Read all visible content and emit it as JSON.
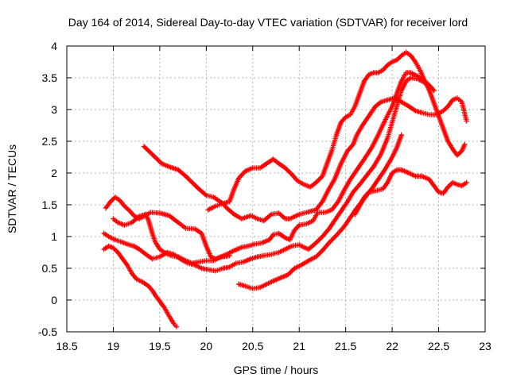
{
  "chart_data": {
    "type": "scatter",
    "title": "Day 164 of 2014, Sidereal Day-to-day VTEC variation (SDTVAR) for receiver lord",
    "xlabel": "GPS time / hours",
    "ylabel": "SDTVAR / TECUs",
    "xlim": [
      18.5,
      23
    ],
    "ylim": [
      -0.5,
      4
    ],
    "xticks": [
      "18.5",
      "19",
      "19.5",
      "20",
      "20.5",
      "21",
      "21.5",
      "22",
      "22.5",
      "23"
    ],
    "yticks": [
      "-0.5",
      "0",
      "0.5",
      "1",
      "1.5",
      "2",
      "2.5",
      "3",
      "3.5",
      "4"
    ],
    "grid": true,
    "marker": "plus",
    "color": "#ff0000",
    "series": [
      {
        "points": [
          [
            18.92,
            1.45
          ],
          [
            18.97,
            1.55
          ],
          [
            19.02,
            1.62
          ],
          [
            19.07,
            1.57
          ],
          [
            19.12,
            1.48
          ],
          [
            19.18,
            1.4
          ],
          [
            19.22,
            1.33
          ],
          [
            19.28,
            1.28
          ],
          [
            19.33,
            1.32
          ],
          [
            19.4,
            1.38
          ],
          [
            19.5,
            1.37
          ],
          [
            19.6,
            1.33
          ],
          [
            19.7,
            1.22
          ],
          [
            19.78,
            1.13
          ],
          [
            19.88,
            1.12
          ],
          [
            19.95,
            1.05
          ],
          [
            20.0,
            0.85
          ],
          [
            20.05,
            0.68
          ],
          [
            20.1,
            0.65
          ],
          [
            20.18,
            0.68
          ],
          [
            20.25,
            0.7
          ]
        ]
      },
      {
        "points": [
          [
            19.33,
            2.42
          ],
          [
            19.38,
            2.35
          ],
          [
            19.45,
            2.25
          ],
          [
            19.52,
            2.15
          ],
          [
            19.6,
            2.1
          ],
          [
            19.7,
            2.05
          ],
          [
            19.78,
            1.95
          ],
          [
            19.85,
            1.85
          ],
          [
            19.92,
            1.75
          ],
          [
            20.0,
            1.65
          ],
          [
            20.08,
            1.62
          ],
          [
            20.12,
            1.58
          ],
          [
            20.18,
            1.52
          ],
          [
            20.22,
            1.45
          ],
          [
            20.3,
            1.35
          ],
          [
            20.38,
            1.28
          ],
          [
            20.48,
            1.33
          ],
          [
            20.55,
            1.28
          ],
          [
            20.62,
            1.25
          ],
          [
            20.7,
            1.35
          ],
          [
            20.78,
            1.37
          ],
          [
            20.85,
            1.28
          ],
          [
            20.9,
            1.28
          ],
          [
            21.0,
            1.35
          ],
          [
            21.08,
            1.38
          ],
          [
            21.18,
            1.42
          ],
          [
            21.25,
            1.55
          ],
          [
            21.32,
            1.75
          ],
          [
            21.38,
            1.9
          ],
          [
            21.45,
            2.15
          ],
          [
            21.52,
            2.35
          ],
          [
            21.58,
            2.45
          ],
          [
            21.62,
            2.6
          ],
          [
            21.68,
            2.75
          ],
          [
            21.75,
            2.9
          ],
          [
            21.82,
            3.05
          ],
          [
            21.88,
            3.12
          ],
          [
            21.95,
            3.15
          ],
          [
            22.02,
            3.18
          ],
          [
            22.1,
            3.12
          ],
          [
            22.18,
            3.05
          ],
          [
            22.25,
            2.98
          ],
          [
            22.32,
            2.95
          ],
          [
            22.4,
            2.92
          ],
          [
            22.48,
            2.92
          ],
          [
            22.55,
            2.98
          ],
          [
            22.6,
            3.05
          ],
          [
            22.65,
            3.15
          ],
          [
            22.7,
            3.18
          ],
          [
            22.75,
            3.12
          ],
          [
            22.8,
            2.82
          ]
        ]
      },
      {
        "points": [
          [
            19.0,
            1.28
          ],
          [
            19.05,
            1.22
          ],
          [
            19.12,
            1.18
          ],
          [
            19.2,
            1.22
          ],
          [
            19.28,
            1.32
          ],
          [
            19.35,
            1.35
          ],
          [
            19.38,
            1.25
          ],
          [
            19.42,
            1.05
          ],
          [
            19.45,
            0.92
          ],
          [
            19.5,
            0.8
          ],
          [
            19.55,
            0.75
          ],
          [
            19.62,
            0.7
          ],
          [
            19.7,
            0.68
          ],
          [
            19.78,
            0.62
          ],
          [
            19.85,
            0.58
          ],
          [
            19.92,
            0.6
          ],
          [
            20.0,
            0.62
          ],
          [
            20.08,
            0.62
          ],
          [
            20.15,
            0.68
          ],
          [
            20.22,
            0.72
          ],
          [
            20.3,
            0.78
          ],
          [
            20.38,
            0.83
          ],
          [
            20.45,
            0.85
          ],
          [
            20.52,
            0.88
          ],
          [
            20.6,
            0.9
          ],
          [
            20.68,
            0.95
          ],
          [
            20.72,
            1.03
          ],
          [
            20.78,
            1.05
          ],
          [
            20.85,
            0.98
          ],
          [
            20.9,
            0.95
          ],
          [
            20.95,
            1.1
          ],
          [
            21.0,
            1.18
          ],
          [
            21.08,
            1.2
          ],
          [
            21.15,
            1.25
          ],
          [
            21.2,
            1.38
          ],
          [
            21.28,
            1.38
          ],
          [
            21.35,
            1.42
          ],
          [
            21.42,
            1.55
          ],
          [
            21.48,
            1.72
          ],
          [
            21.55,
            1.9
          ],
          [
            21.62,
            2.05
          ],
          [
            21.7,
            2.22
          ],
          [
            21.78,
            2.4
          ],
          [
            21.85,
            2.6
          ],
          [
            21.92,
            2.82
          ],
          [
            22.0,
            3.05
          ],
          [
            22.05,
            3.25
          ],
          [
            22.1,
            3.45
          ],
          [
            22.15,
            3.58
          ],
          [
            22.2,
            3.58
          ],
          [
            22.28,
            3.52
          ],
          [
            22.35,
            3.45
          ],
          [
            22.4,
            3.38
          ],
          [
            22.45,
            3.3
          ]
        ]
      },
      {
        "points": [
          [
            18.9,
            0.8
          ],
          [
            18.95,
            0.85
          ],
          [
            19.0,
            0.82
          ],
          [
            19.05,
            0.75
          ],
          [
            19.1,
            0.65
          ],
          [
            19.15,
            0.55
          ],
          [
            19.2,
            0.42
          ],
          [
            19.25,
            0.33
          ],
          [
            19.32,
            0.28
          ],
          [
            19.38,
            0.22
          ],
          [
            19.42,
            0.15
          ],
          [
            19.45,
            0.08
          ],
          [
            19.5,
            -0.02
          ],
          [
            19.55,
            -0.12
          ],
          [
            19.6,
            -0.25
          ],
          [
            19.65,
            -0.37
          ],
          [
            19.68,
            -0.42
          ]
        ]
      },
      {
        "points": [
          [
            18.9,
            1.05
          ],
          [
            18.95,
            1.0
          ],
          [
            19.02,
            0.95
          ],
          [
            19.08,
            0.92
          ],
          [
            19.15,
            0.88
          ],
          [
            19.22,
            0.85
          ],
          [
            19.28,
            0.8
          ],
          [
            19.35,
            0.72
          ],
          [
            19.42,
            0.65
          ],
          [
            19.5,
            0.68
          ],
          [
            19.58,
            0.75
          ],
          [
            19.65,
            0.72
          ],
          [
            19.72,
            0.65
          ],
          [
            19.8,
            0.58
          ],
          [
            19.88,
            0.55
          ],
          [
            19.95,
            0.5
          ],
          [
            20.02,
            0.48
          ],
          [
            20.1,
            0.46
          ],
          [
            20.18,
            0.5
          ],
          [
            20.25,
            0.52
          ],
          [
            20.32,
            0.58
          ],
          [
            20.4,
            0.6
          ],
          [
            20.48,
            0.65
          ],
          [
            20.55,
            0.68
          ],
          [
            20.62,
            0.7
          ],
          [
            20.7,
            0.72
          ],
          [
            20.78,
            0.75
          ],
          [
            20.85,
            0.8
          ],
          [
            20.92,
            0.85
          ],
          [
            21.0,
            0.87
          ],
          [
            21.05,
            0.83
          ],
          [
            21.1,
            0.8
          ],
          [
            21.18,
            0.9
          ],
          [
            21.25,
            1.0
          ],
          [
            21.32,
            1.12
          ],
          [
            21.38,
            1.25
          ],
          [
            21.45,
            1.4
          ],
          [
            21.52,
            1.55
          ],
          [
            21.58,
            1.7
          ],
          [
            21.65,
            1.82
          ],
          [
            21.72,
            1.95
          ],
          [
            21.8,
            2.1
          ],
          [
            21.88,
            2.3
          ],
          [
            21.95,
            2.55
          ],
          [
            22.0,
            2.8
          ],
          [
            22.05,
            3.05
          ],
          [
            22.1,
            3.3
          ],
          [
            22.15,
            3.45
          ],
          [
            22.2,
            3.5
          ],
          [
            22.28,
            3.48
          ],
          [
            22.35,
            3.42
          ]
        ]
      },
      {
        "points": [
          [
            20.02,
            1.42
          ],
          [
            20.1,
            1.48
          ],
          [
            20.18,
            1.52
          ],
          [
            20.25,
            1.55
          ],
          [
            20.3,
            1.75
          ],
          [
            20.35,
            1.92
          ],
          [
            20.42,
            2.03
          ],
          [
            20.5,
            2.08
          ],
          [
            20.58,
            2.08
          ],
          [
            20.65,
            2.15
          ],
          [
            20.72,
            2.22
          ],
          [
            20.78,
            2.15
          ],
          [
            20.85,
            2.08
          ],
          [
            20.92,
            1.98
          ],
          [
            20.98,
            1.88
          ],
          [
            21.05,
            1.82
          ],
          [
            21.12,
            1.78
          ],
          [
            21.18,
            1.85
          ],
          [
            21.25,
            1.95
          ],
          [
            21.3,
            2.15
          ],
          [
            21.35,
            2.35
          ],
          [
            21.4,
            2.6
          ],
          [
            21.45,
            2.8
          ],
          [
            21.5,
            2.88
          ],
          [
            21.55,
            2.92
          ],
          [
            21.6,
            3.05
          ],
          [
            21.65,
            3.25
          ],
          [
            21.7,
            3.45
          ],
          [
            21.75,
            3.55
          ],
          [
            21.8,
            3.58
          ],
          [
            21.85,
            3.58
          ],
          [
            21.9,
            3.62
          ],
          [
            21.95,
            3.7
          ],
          [
            22.0,
            3.75
          ],
          [
            22.05,
            3.78
          ],
          [
            22.1,
            3.85
          ],
          [
            22.15,
            3.9
          ],
          [
            22.2,
            3.85
          ],
          [
            22.25,
            3.75
          ],
          [
            22.3,
            3.62
          ],
          [
            22.35,
            3.45
          ],
          [
            22.4,
            3.3
          ],
          [
            22.45,
            3.1
          ],
          [
            22.5,
            2.9
          ],
          [
            22.55,
            2.7
          ],
          [
            22.6,
            2.5
          ],
          [
            22.65,
            2.38
          ],
          [
            22.7,
            2.28
          ],
          [
            22.75,
            2.35
          ],
          [
            22.78,
            2.45
          ]
        ]
      },
      {
        "points": [
          [
            20.35,
            0.25
          ],
          [
            20.42,
            0.22
          ],
          [
            20.5,
            0.18
          ],
          [
            20.58,
            0.2
          ],
          [
            20.65,
            0.25
          ],
          [
            20.72,
            0.3
          ],
          [
            20.8,
            0.35
          ],
          [
            20.88,
            0.4
          ],
          [
            20.95,
            0.5
          ],
          [
            21.02,
            0.55
          ],
          [
            21.1,
            0.62
          ],
          [
            21.18,
            0.68
          ],
          [
            21.25,
            0.78
          ],
          [
            21.32,
            0.9
          ],
          [
            21.4,
            1.02
          ],
          [
            21.48,
            1.15
          ],
          [
            21.55,
            1.3
          ],
          [
            21.62,
            1.45
          ],
          [
            21.7,
            1.6
          ],
          [
            21.78,
            1.75
          ],
          [
            21.85,
            1.9
          ],
          [
            21.92,
            2.05
          ],
          [
            22.0,
            2.25
          ],
          [
            22.05,
            2.4
          ],
          [
            22.1,
            2.6
          ]
        ]
      },
      {
        "points": [
          [
            21.6,
            1.35
          ],
          [
            21.65,
            1.48
          ],
          [
            21.7,
            1.62
          ],
          [
            21.75,
            1.7
          ],
          [
            21.82,
            1.72
          ],
          [
            21.9,
            1.75
          ],
          [
            21.95,
            1.85
          ],
          [
            22.0,
            2.0
          ],
          [
            22.05,
            2.05
          ],
          [
            22.1,
            2.05
          ],
          [
            22.18,
            2.0
          ],
          [
            22.25,
            1.95
          ],
          [
            22.32,
            1.95
          ],
          [
            22.4,
            1.9
          ],
          [
            22.45,
            1.8
          ],
          [
            22.5,
            1.7
          ],
          [
            22.55,
            1.68
          ],
          [
            22.6,
            1.78
          ],
          [
            22.65,
            1.85
          ],
          [
            22.7,
            1.82
          ],
          [
            22.75,
            1.8
          ],
          [
            22.8,
            1.85
          ]
        ]
      }
    ]
  }
}
